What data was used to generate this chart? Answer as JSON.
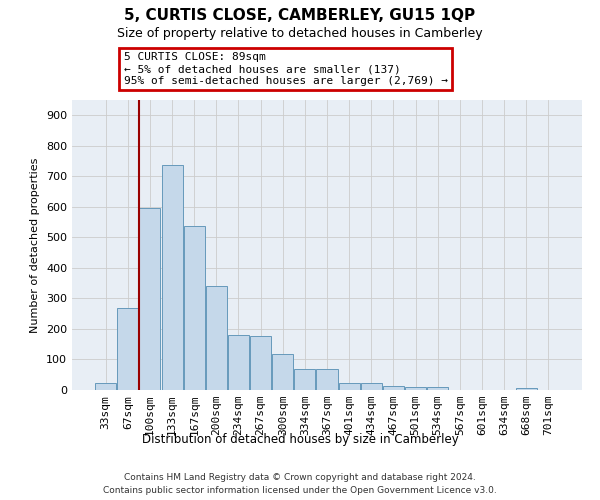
{
  "title": "5, CURTIS CLOSE, CAMBERLEY, GU15 1QP",
  "subtitle": "Size of property relative to detached houses in Camberley",
  "xlabel": "Distribution of detached houses by size in Camberley",
  "ylabel": "Number of detached properties",
  "bar_color": "#c5d8ea",
  "bar_edge_color": "#6699bb",
  "background_color": "#ffffff",
  "plot_bg_color": "#e8eef5",
  "grid_color": "#cccccc",
  "annotation_box_color": "#cc0000",
  "vline_color": "#990000",
  "vline_x": 1.5,
  "annotation_text": "5 CURTIS CLOSE: 89sqm\n← 5% of detached houses are smaller (137)\n95% of semi-detached houses are larger (2,769) →",
  "footer_line1": "Contains HM Land Registry data © Crown copyright and database right 2024.",
  "footer_line2": "Contains public sector information licensed under the Open Government Licence v3.0.",
  "categories": [
    "33sqm",
    "67sqm",
    "100sqm",
    "133sqm",
    "167sqm",
    "200sqm",
    "234sqm",
    "267sqm",
    "300sqm",
    "334sqm",
    "367sqm",
    "401sqm",
    "434sqm",
    "467sqm",
    "501sqm",
    "534sqm",
    "567sqm",
    "601sqm",
    "634sqm",
    "668sqm",
    "701sqm"
  ],
  "values": [
    22,
    270,
    597,
    738,
    537,
    340,
    180,
    178,
    118,
    68,
    68,
    22,
    22,
    12,
    10,
    10,
    0,
    0,
    0,
    8,
    0
  ],
  "ylim": [
    0,
    950
  ],
  "yticks": [
    0,
    100,
    200,
    300,
    400,
    500,
    600,
    700,
    800,
    900
  ]
}
